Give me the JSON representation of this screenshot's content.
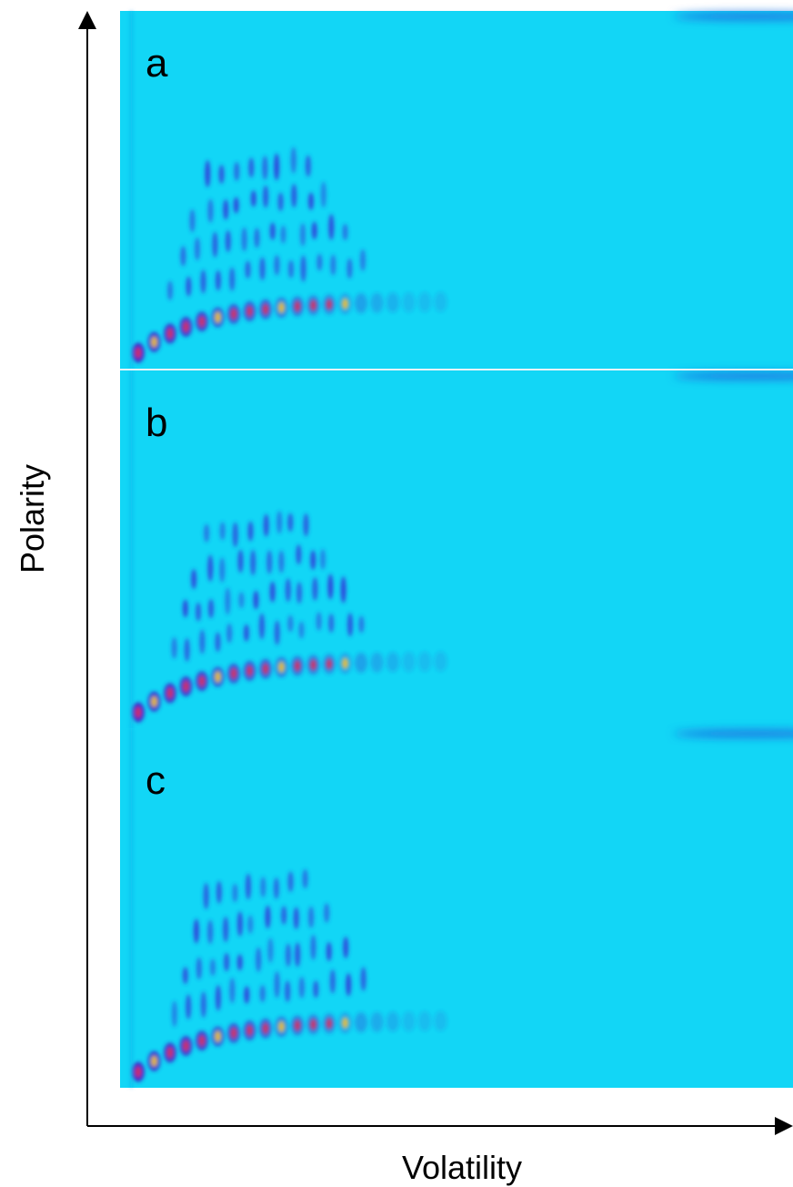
{
  "axes": {
    "x_label": "Volatility",
    "y_label": "Polarity"
  },
  "panels": [
    {
      "label": "a"
    },
    {
      "label": "b"
    },
    {
      "label": "c"
    }
  ]
}
